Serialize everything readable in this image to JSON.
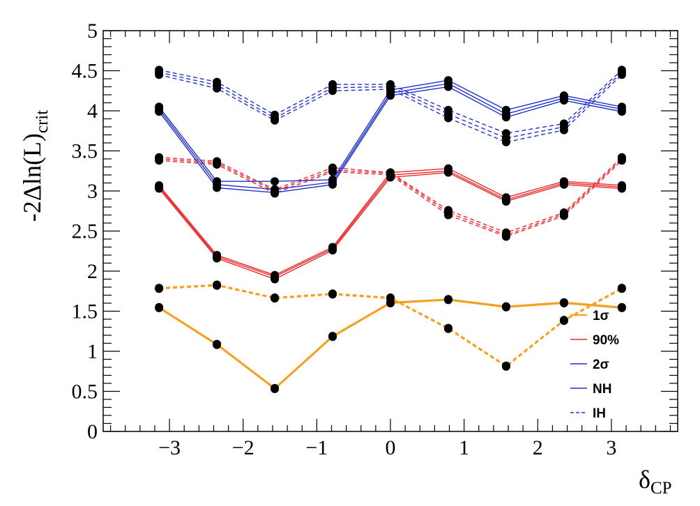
{
  "chart_data": {
    "type": "line",
    "title": "",
    "xlabel": "δ",
    "xlabel_sub": "CP",
    "ylabel": "-2Δln(L)",
    "ylabel_sub": "crit",
    "xlim": [
      -3.9,
      3.9
    ],
    "ylim": [
      0,
      5
    ],
    "grid": false,
    "legend_position": "bottom-right",
    "x_ticks": [
      -3,
      -2,
      -1,
      0,
      1,
      2,
      3
    ],
    "x_tick_labels": [
      "−3",
      "−2",
      "−1",
      "0",
      "1",
      "2",
      "3"
    ],
    "y_ticks": [
      0,
      0.5,
      1,
      1.5,
      2,
      2.5,
      3,
      3.5,
      4,
      4.5,
      5
    ],
    "y_tick_labels": [
      "0",
      "0.5",
      "1",
      "1.5",
      "2",
      "2.5",
      "3",
      "3.5",
      "4",
      "4.5",
      "5"
    ],
    "x": [
      -3.1416,
      -2.3562,
      -1.5708,
      -0.7854,
      0,
      0.7854,
      1.5708,
      2.3562,
      3.1416
    ],
    "series": [
      {
        "group": "nh-1sigma",
        "color": "#f5a020",
        "dashed": false,
        "values": [
          1.54,
          1.08,
          0.53,
          1.18,
          1.6,
          1.64,
          1.55,
          1.6,
          1.54
        ]
      },
      {
        "group": "nh-1sigma",
        "color": "#f5a020",
        "dashed": false,
        "values": [
          1.55,
          1.09,
          0.54,
          1.19,
          1.61,
          1.65,
          1.56,
          1.61,
          1.55
        ]
      },
      {
        "group": "ih-1sigma",
        "color": "#f5a020",
        "dashed": true,
        "values": [
          1.78,
          1.82,
          1.66,
          1.71,
          1.66,
          1.28,
          0.81,
          1.38,
          1.78
        ]
      },
      {
        "group": "ih-1sigma",
        "color": "#f5a020",
        "dashed": true,
        "values": [
          1.79,
          1.83,
          1.67,
          1.72,
          1.67,
          1.29,
          0.82,
          1.39,
          1.79
        ]
      },
      {
        "group": "nh-90",
        "color": "#e8282a",
        "dashed": false,
        "values": [
          3.03,
          2.16,
          1.9,
          2.26,
          3.17,
          3.23,
          2.87,
          3.08,
          3.03
        ]
      },
      {
        "group": "nh-90",
        "color": "#e8282a",
        "dashed": false,
        "values": [
          3.05,
          2.18,
          1.93,
          2.28,
          3.2,
          3.25,
          2.89,
          3.1,
          3.05
        ]
      },
      {
        "group": "nh-90",
        "color": "#e8282a",
        "dashed": false,
        "values": [
          3.07,
          2.2,
          1.95,
          2.3,
          3.23,
          3.28,
          2.92,
          3.12,
          3.07
        ]
      },
      {
        "group": "ih-90",
        "color": "#e8282a",
        "dashed": true,
        "values": [
          3.38,
          3.33,
          2.97,
          3.24,
          3.2,
          2.7,
          2.43,
          2.69,
          3.38
        ]
      },
      {
        "group": "ih-90",
        "color": "#e8282a",
        "dashed": true,
        "values": [
          3.4,
          3.35,
          3.0,
          3.26,
          3.22,
          2.73,
          2.45,
          2.71,
          3.4
        ]
      },
      {
        "group": "ih-90",
        "color": "#e8282a",
        "dashed": true,
        "values": [
          3.42,
          3.37,
          3.02,
          3.29,
          3.23,
          2.76,
          2.48,
          2.73,
          3.42
        ]
      },
      {
        "group": "nh-2sigma",
        "color": "#1f2fcc",
        "dashed": false,
        "values": [
          3.99,
          3.04,
          2.98,
          3.08,
          4.19,
          4.3,
          3.92,
          4.13,
          3.99
        ]
      },
      {
        "group": "nh-2sigma",
        "color": "#1f2fcc",
        "dashed": false,
        "values": [
          4.02,
          3.08,
          3.02,
          3.11,
          4.22,
          4.34,
          3.96,
          4.16,
          4.02
        ]
      },
      {
        "group": "nh-2sigma",
        "color": "#1f2fcc",
        "dashed": false,
        "values": [
          4.05,
          3.12,
          3.12,
          3.14,
          4.26,
          4.38,
          4.01,
          4.19,
          4.05
        ]
      },
      {
        "group": "ih-2sigma",
        "color": "#1f2fcc",
        "dashed": true,
        "values": [
          4.45,
          4.28,
          3.88,
          4.25,
          4.27,
          3.91,
          3.61,
          3.76,
          4.45
        ]
      },
      {
        "group": "ih-2sigma",
        "color": "#1f2fcc",
        "dashed": true,
        "values": [
          4.48,
          4.32,
          3.91,
          4.29,
          4.3,
          3.96,
          3.66,
          3.8,
          4.48
        ]
      },
      {
        "group": "ih-2sigma",
        "color": "#1f2fcc",
        "dashed": true,
        "values": [
          4.51,
          4.36,
          3.95,
          4.33,
          4.33,
          4.01,
          3.72,
          3.84,
          4.51
        ]
      }
    ],
    "legend": [
      {
        "label": "1σ",
        "color": "#f5a020",
        "dashed": false
      },
      {
        "label": "90%",
        "color": "#e8282a",
        "dashed": false
      },
      {
        "label": "2σ",
        "color": "#1f2fcc",
        "dashed": false
      },
      {
        "label": "NH",
        "color": "#1f2fcc",
        "dashed": false
      },
      {
        "label": "IH",
        "color": "#1f2fcc",
        "dashed": true
      }
    ]
  }
}
